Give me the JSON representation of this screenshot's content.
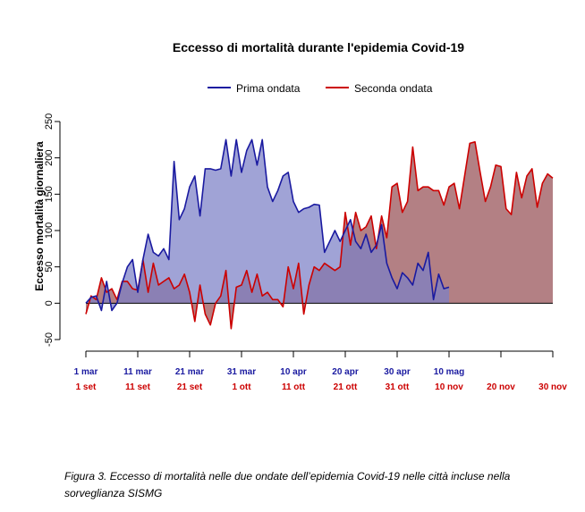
{
  "caption": "Figura 3. Eccesso di mortalità nelle due ondate dell’epidemia Covid-19 nelle città incluse nella sorveglianza SISMG",
  "chart_data": {
    "type": "area",
    "title": "Eccesso di mortalità durante l'epidemia Covid-19",
    "ylabel": "Eccesso mortalità giornaliera",
    "xlabel": "",
    "ylim": [
      -50,
      250
    ],
    "yticks": [
      -50,
      0,
      50,
      100,
      150,
      200,
      250
    ],
    "grid": false,
    "legend_position": "top",
    "x_tick_positions": [
      0,
      10,
      20,
      30,
      40,
      50,
      60,
      70,
      80,
      90
    ],
    "x_ticks_first_wave": [
      "1 mar",
      "11 mar",
      "21 mar",
      "31 mar",
      "10 apr",
      "20 apr",
      "30 apr",
      "10 mag"
    ],
    "x_ticks_second_wave": [
      "1 set",
      "11 set",
      "21 set",
      "1 ott",
      "11 ott",
      "21 ott",
      "31 ott",
      "10 nov",
      "20 nov",
      "30 nov"
    ],
    "series": [
      {
        "name": "Prima ondata",
        "line_color": "#1a1aa0",
        "fill_color": "#7b80c6",
        "x": [
          0,
          1,
          2,
          3,
          4,
          5,
          6,
          7,
          8,
          9,
          10,
          11,
          12,
          13,
          14,
          15,
          16,
          17,
          18,
          19,
          20,
          21,
          22,
          23,
          24,
          25,
          26,
          27,
          28,
          29,
          30,
          31,
          32,
          33,
          34,
          35,
          36,
          37,
          38,
          39,
          40,
          41,
          42,
          43,
          44,
          45,
          46,
          47,
          48,
          49,
          50,
          51,
          52,
          53,
          54,
          55,
          56,
          57,
          58,
          59,
          60,
          61,
          62,
          63,
          64,
          65,
          66,
          67,
          68,
          69,
          70
        ],
        "values": [
          0,
          8,
          10,
          -10,
          30,
          -10,
          0,
          28,
          50,
          60,
          15,
          60,
          95,
          70,
          65,
          75,
          60,
          195,
          115,
          130,
          160,
          175,
          120,
          185,
          185,
          183,
          185,
          225,
          175,
          225,
          180,
          210,
          225,
          190,
          225,
          160,
          140,
          155,
          175,
          180,
          140,
          125,
          130,
          132,
          136,
          135,
          70,
          85,
          100,
          85,
          100,
          115,
          85,
          75,
          95,
          70,
          80,
          108,
          55,
          35,
          20,
          42,
          35,
          25,
          55,
          45,
          70,
          5,
          40,
          20,
          22
        ]
      },
      {
        "name": "Seconda ondata",
        "line_color": "#cc0000",
        "fill_color": "#a66a6e",
        "x": [
          0,
          1,
          2,
          3,
          4,
          5,
          6,
          7,
          8,
          9,
          10,
          11,
          12,
          13,
          14,
          15,
          16,
          17,
          18,
          19,
          20,
          21,
          22,
          23,
          24,
          25,
          26,
          27,
          28,
          29,
          30,
          31,
          32,
          33,
          34,
          35,
          36,
          37,
          38,
          39,
          40,
          41,
          42,
          43,
          44,
          45,
          46,
          47,
          48,
          49,
          50,
          51,
          52,
          53,
          54,
          55,
          56,
          57,
          58,
          59,
          60,
          61,
          62,
          63,
          64,
          65,
          66,
          67,
          68,
          69,
          70,
          71,
          72,
          73,
          74,
          75,
          76,
          77,
          78,
          79,
          80,
          81,
          82,
          83,
          84,
          85,
          86,
          87,
          88,
          89,
          90
        ],
        "values": [
          -15,
          10,
          5,
          35,
          15,
          20,
          5,
          30,
          30,
          20,
          18,
          60,
          15,
          55,
          25,
          30,
          35,
          20,
          25,
          40,
          15,
          -25,
          25,
          -15,
          -30,
          0,
          10,
          45,
          -35,
          22,
          25,
          45,
          15,
          40,
          10,
          15,
          5,
          5,
          -5,
          50,
          20,
          55,
          -15,
          25,
          50,
          45,
          55,
          50,
          45,
          50,
          125,
          80,
          125,
          100,
          105,
          120,
          75,
          120,
          90,
          160,
          165,
          125,
          140,
          215,
          155,
          160,
          160,
          155,
          155,
          135,
          160,
          165,
          130,
          175,
          220,
          222,
          180,
          140,
          160,
          190,
          188,
          130,
          122,
          180,
          145,
          175,
          185,
          132,
          165,
          178,
          172
        ]
      }
    ]
  }
}
